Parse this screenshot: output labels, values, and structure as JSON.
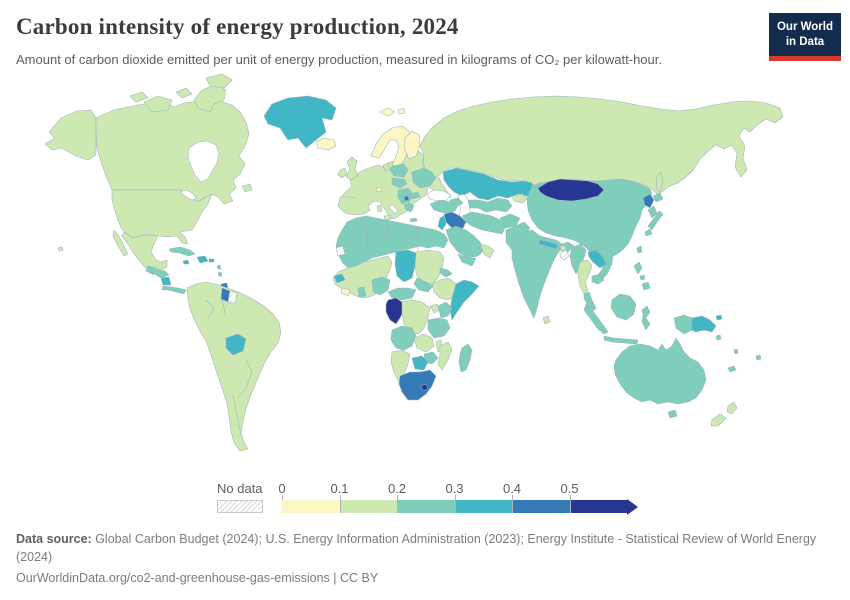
{
  "header": {
    "title": "Carbon intensity of energy production, 2024",
    "subtitle": "Amount of carbon dioxide emitted per unit of energy production, measured in kilograms of CO₂ per kilowatt-hour.",
    "logo": {
      "line1": "Our World",
      "line2": "in Data"
    }
  },
  "legend": {
    "no_data_label": "No data"
  },
  "chart_data": {
    "type": "choropleth",
    "title": "Carbon intensity of energy production, 2024",
    "subtitle": "Amount of carbon dioxide emitted per unit of energy production, measured in kilograms of CO₂ per kilowatt-hour.",
    "year": 2024,
    "unit": "kilograms of CO₂ per kilowatt-hour",
    "legend_open_ended": true,
    "bins": [
      {
        "label": "0",
        "min": 0,
        "max": 0.1,
        "color": "#fbf7c4"
      },
      {
        "label": "0.1",
        "min": 0.1,
        "max": 0.2,
        "color": "#cee8b2"
      },
      {
        "label": "0.2",
        "min": 0.2,
        "max": 0.3,
        "color": "#7fcdbb"
      },
      {
        "label": "0.3",
        "min": 0.3,
        "max": 0.4,
        "color": "#41b6c4"
      },
      {
        "label": "0.4",
        "min": 0.4,
        "max": 0.5,
        "color": "#3579b7"
      },
      {
        "label": "0.5",
        "min": 0.5,
        "max": null,
        "color": "#283593"
      }
    ],
    "no_data": {
      "label": "No data",
      "style": "hatched"
    },
    "region_bins": {
      "alaska": 1,
      "canada": 1,
      "usa": 1,
      "mexico": 1,
      "baja": 1,
      "newfoundland": 1,
      "victoria-island": 1,
      "baffin-island": 1,
      "ellesmere-island": 1,
      "arctic-island-west": 1,
      "arctic-island-mid": 1,
      "greenland": 3,
      "iceland": 0,
      "guatemala": 2,
      "honduras": 2,
      "nicaragua": 3,
      "costa-panama": 2,
      "cuba": 2,
      "hispaniola": 3,
      "jamaica": 3,
      "puerto-rico": 3,
      "antilles-north": 2,
      "antilles-south": 2,
      "trinidad": 4,
      "hawaii": 1,
      "south-america": 1,
      "guyana": 4,
      "suriname": "no_data",
      "bolivia": 3,
      "europe-base": 1,
      "sicily": 1,
      "sardinia": 1,
      "norway-sweden": 0,
      "finland": 0,
      "svalbard-a": 0,
      "svalbard-b": 0,
      "denmark": 1,
      "uk": 1,
      "ireland": 1,
      "poland": 2,
      "czech-hungary": 2,
      "balkans": 2,
      "kosovo": 4,
      "greece": 2,
      "crete": 2,
      "bulgaria": 2,
      "ukraine": 2,
      "switzerland": 0,
      "russia": 1,
      "sakhalin": 1,
      "kazakhstan": 3,
      "uzbek-turkmen": 2,
      "kyrgyz-tajik": 1,
      "caucasus": 2,
      "turkey": 2,
      "cyprus": 2,
      "syria-iraq": 4,
      "israel-jordan": 3,
      "saudi": 2,
      "uae-oman": 1,
      "yemen": 2,
      "iran": 2,
      "afghanistan": 2,
      "pakistan": 2,
      "china": 2,
      "mongolia": 5,
      "north-korea": 4,
      "south-korea": 2,
      "japan-hokkaido": 2,
      "japan-honshu": 2,
      "japan-kyushu": 2,
      "taiwan": 2,
      "india": 2,
      "nepal": 3,
      "bhutan": 1,
      "bangladesh": "no_data",
      "sri-lanka": 1,
      "myanmar": 2,
      "thailand": 1,
      "laos": 3,
      "vietnam": 2,
      "cambodia": 2,
      "malay-peninsula": 2,
      "sumatra": 2,
      "java": 2,
      "borneo": 2,
      "sulawesi": 2,
      "west-papua": 2,
      "png": 3,
      "png-islands": 3,
      "luzon": 2,
      "visayas": 2,
      "mindanao": 2,
      "australia": 2,
      "tasmania": 2,
      "nz-north": 1,
      "nz-south": 1,
      "fiji": 2,
      "new-caledonia": 2,
      "solomon": 2,
      "vanuatu": 2,
      "north-africa": 2,
      "western-sahara": "no_data",
      "west-africa": 1,
      "senegal": 3,
      "sierra-liberia": 0,
      "ghana": 2,
      "nigeria": 2,
      "chad": 3,
      "sudan": 1,
      "south-sudan": 2,
      "eritrea": 2,
      "ethiopia": 1,
      "somalia": 3,
      "cameroon-car": 2,
      "gabon-congo": 5,
      "drc": 1,
      "uganda": 1,
      "kenya": 2,
      "tanzania": 2,
      "angola": 2,
      "zambia": 1,
      "malawi": 1,
      "mozambique": 1,
      "zimbabwe": 2,
      "botswana": 3,
      "namibia": 1,
      "south-africa": 4,
      "lesotho": 5,
      "madagascar": 2
    }
  },
  "footer": {
    "source_label": "Data source:",
    "sources": " Global Carbon Budget (2024); U.S. Energy Information Administration (2023); Energy Institute - Statistical Review of World Energy (2024)",
    "link": "OurWorldinData.org/co2-and-greenhouse-gas-emissions",
    "divider": " | ",
    "license": "CC BY"
  },
  "colors": {
    "logo_bg": "#132c4d",
    "logo_accent": "#d93a2b",
    "map_border": "#9eb2bc",
    "no_data_hatch": "#d8d8d8"
  }
}
